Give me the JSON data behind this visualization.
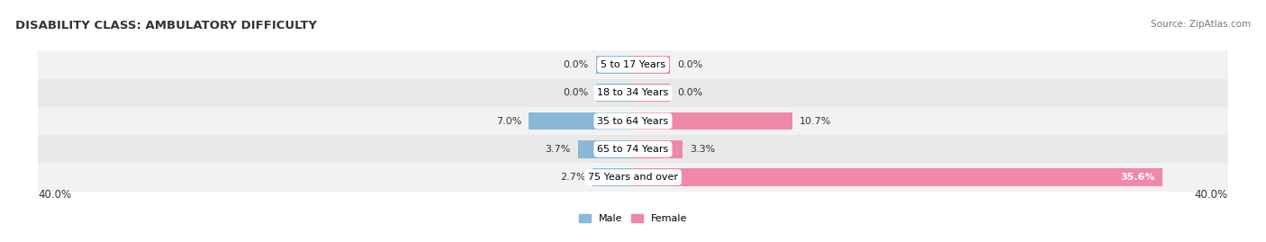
{
  "title": "DISABILITY CLASS: AMBULATORY DIFFICULTY",
  "source": "Source: ZipAtlas.com",
  "categories": [
    "5 to 17 Years",
    "18 to 34 Years",
    "35 to 64 Years",
    "65 to 74 Years",
    "75 Years and over"
  ],
  "male_values": [
    0.0,
    0.0,
    7.0,
    3.7,
    2.7
  ],
  "female_values": [
    0.0,
    0.0,
    10.7,
    3.3,
    35.6
  ],
  "male_min_bar": 2.5,
  "female_min_bar": 2.5,
  "max_val": 40.0,
  "male_color": "#89b8d8",
  "female_color": "#f088a8",
  "row_bg_even": "#f2f2f2",
  "row_bg_odd": "#e8e8e8",
  "label_fontsize": 8.0,
  "title_fontsize": 9.5,
  "source_fontsize": 7.5,
  "axis_label_fontsize": 8.5,
  "bar_height": 0.62,
  "x_axis_label_left": "40.0%",
  "x_axis_label_right": "40.0%",
  "legend_labels": [
    "Male",
    "Female"
  ]
}
